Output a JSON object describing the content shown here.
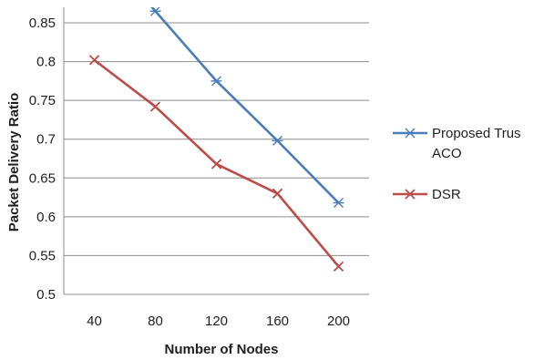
{
  "chart_data": {
    "type": "line",
    "title": "",
    "xlabel": "Number of Nodes",
    "ylabel": "Packet Delivery Ratio",
    "categories": [
      "40",
      "80",
      "120",
      "160",
      "200"
    ],
    "ylim": [
      0.5,
      0.85
    ],
    "yticks": [
      "0.5",
      "0.55",
      "0.6",
      "0.65",
      "0.7",
      "0.75",
      "0.8",
      "0.85"
    ],
    "grid": true,
    "legend_position": "right",
    "series": [
      {
        "name": "Proposed Trust ACO",
        "legend_lines": [
          "Proposed Trus",
          "ACO"
        ],
        "color": "#4a7ebb",
        "marker": "asterisk",
        "values": [
          null,
          0.865,
          0.775,
          0.698,
          0.618
        ]
      },
      {
        "name": "DSR",
        "legend_lines": [
          "DSR"
        ],
        "color": "#be4b48",
        "marker": "x",
        "values": [
          0.802,
          0.742,
          0.668,
          0.63,
          0.536
        ]
      }
    ]
  }
}
